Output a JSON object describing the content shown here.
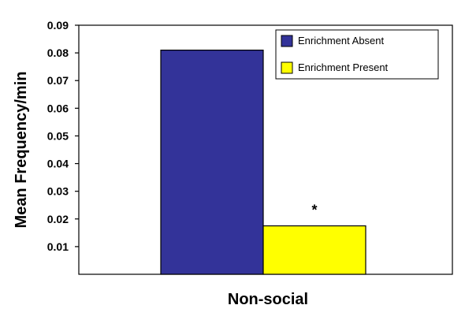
{
  "chart_data": {
    "type": "bar",
    "title": "",
    "xlabel": "Non-social",
    "ylabel": "Mean Frequency/min",
    "ylim": [
      0,
      0.09
    ],
    "yticks": [
      "0.01",
      "0.02",
      "0.03",
      "0.04",
      "0.05",
      "0.06",
      "0.07",
      "0.08",
      "0.09"
    ],
    "categories": [
      "Non-social"
    ],
    "series": [
      {
        "name": "Enrichment Absent",
        "values": [
          0.081
        ],
        "color": "#333399"
      },
      {
        "name": "Enrichment Present",
        "values": [
          0.0175
        ],
        "color": "#ffff00"
      }
    ],
    "annotations": [
      {
        "text": "*",
        "series": "Enrichment Present",
        "category": "Non-social"
      }
    ],
    "grid": false,
    "legend_position": "top-right"
  }
}
